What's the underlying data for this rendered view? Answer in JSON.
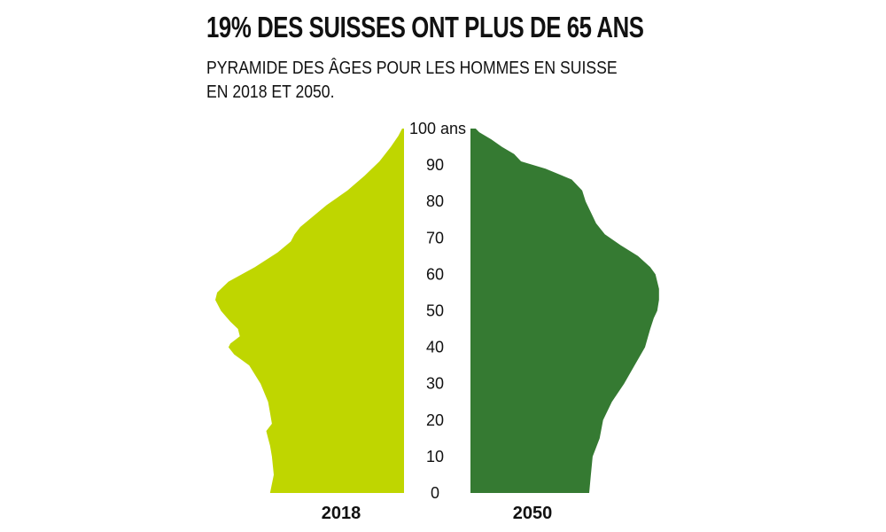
{
  "title": "19% DES SUISSES ONT PLUS DE 65 ANS",
  "subtitle_lines": [
    "PYRAMIDE DES ÂGES POUR LES HOMMES EN SUISSE",
    "EN 2018 ET 2050."
  ],
  "chart_data": {
    "type": "area",
    "axis": {
      "ticks": [
        0,
        10,
        20,
        30,
        40,
        50,
        60,
        70,
        80,
        90,
        100
      ],
      "tick_labels": [
        "0",
        "10",
        "20",
        "30",
        "40",
        "50",
        "60",
        "70",
        "80",
        "90",
        "100 ans"
      ],
      "range": [
        0,
        100
      ]
    },
    "series": [
      {
        "name": "2018",
        "color": "#bfd600",
        "side": "left",
        "points": [
          [
            0,
            0.71
          ],
          [
            5,
            0.69
          ],
          [
            10,
            0.7
          ],
          [
            13,
            0.71
          ],
          [
            15,
            0.72
          ],
          [
            17,
            0.73
          ],
          [
            19,
            0.7
          ],
          [
            22,
            0.71
          ],
          [
            25,
            0.72
          ],
          [
            30,
            0.76
          ],
          [
            35,
            0.82
          ],
          [
            38,
            0.9
          ],
          [
            40,
            0.93
          ],
          [
            41,
            0.92
          ],
          [
            43,
            0.87
          ],
          [
            45,
            0.88
          ],
          [
            47,
            0.92
          ],
          [
            50,
            0.97
          ],
          [
            53,
            1.0
          ],
          [
            55,
            0.99
          ],
          [
            58,
            0.93
          ],
          [
            62,
            0.79
          ],
          [
            66,
            0.67
          ],
          [
            69,
            0.6
          ],
          [
            71,
            0.58
          ],
          [
            73,
            0.55
          ],
          [
            76,
            0.48
          ],
          [
            79,
            0.41
          ],
          [
            83,
            0.3
          ],
          [
            87,
            0.21
          ],
          [
            91,
            0.13
          ],
          [
            95,
            0.07
          ],
          [
            98,
            0.03
          ],
          [
            100,
            0.01
          ]
        ]
      },
      {
        "name": "2050",
        "color": "#357a32",
        "side": "right",
        "points": [
          [
            0,
            0.68
          ],
          [
            5,
            0.69
          ],
          [
            10,
            0.7
          ],
          [
            15,
            0.74
          ],
          [
            20,
            0.76
          ],
          [
            25,
            0.81
          ],
          [
            30,
            0.88
          ],
          [
            35,
            0.94
          ],
          [
            40,
            1.0
          ],
          [
            45,
            1.03
          ],
          [
            48,
            1.05
          ],
          [
            50,
            1.07
          ],
          [
            53,
            1.08
          ],
          [
            56,
            1.08
          ],
          [
            60,
            1.06
          ],
          [
            62,
            1.03
          ],
          [
            65,
            0.96
          ],
          [
            68,
            0.86
          ],
          [
            71,
            0.77
          ],
          [
            74,
            0.72
          ],
          [
            77,
            0.69
          ],
          [
            80,
            0.66
          ],
          [
            83,
            0.64
          ],
          [
            86,
            0.58
          ],
          [
            89,
            0.43
          ],
          [
            91,
            0.29
          ],
          [
            93,
            0.25
          ],
          [
            95,
            0.18
          ],
          [
            97,
            0.12
          ],
          [
            99,
            0.05
          ],
          [
            100,
            0.03
          ]
        ]
      }
    ]
  }
}
